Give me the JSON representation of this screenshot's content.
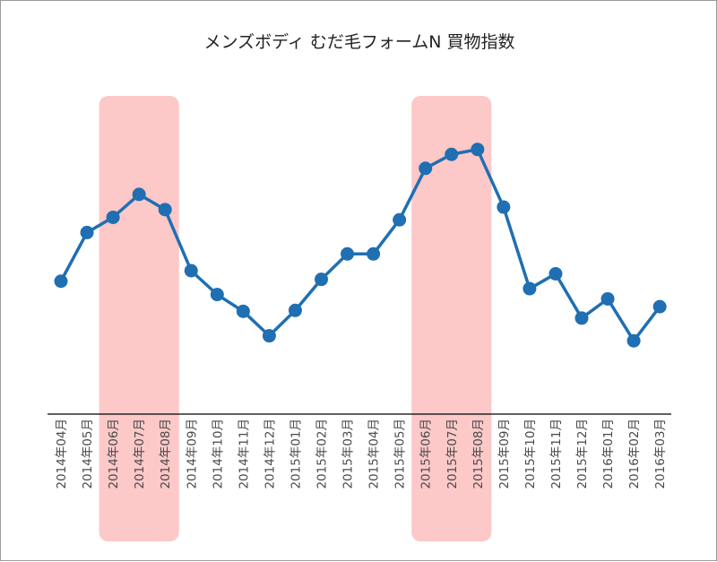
{
  "chart_data": {
    "type": "line",
    "title": "メンズボディ むだ毛フォームN 買物指数",
    "xlabel": "",
    "ylabel": "",
    "ylim": [
      0,
      100
    ],
    "y_axis_visible": false,
    "grid": false,
    "legend": "none",
    "categories": [
      "2014年04月",
      "2014年05月",
      "2014年06月",
      "2014年07月",
      "2014年08月",
      "2014年09月",
      "2014年10月",
      "2014年11月",
      "2014年12月",
      "2015年01月",
      "2015年02月",
      "2015年03月",
      "2015年04月",
      "2015年05月",
      "2015年06月",
      "2015年07月",
      "2015年08月",
      "2015年09月",
      "2015年10月",
      "2015年11月",
      "2015年12月",
      "2016年01月",
      "2016年02月",
      "2016年03月"
    ],
    "series": [
      {
        "values": [
          41.4,
          57.1,
          62.0,
          69.4,
          64.5,
          44.8,
          37.1,
          31.7,
          23.8,
          32.0,
          42.0,
          50.2,
          50.2,
          61.2,
          77.8,
          82.3,
          83.9,
          65.3,
          39.0,
          43.8,
          29.5,
          35.7,
          22.2,
          33.2
        ]
      }
    ],
    "highlight_ranges": [
      {
        "from": "2014年06月",
        "to": "2014年08月"
      },
      {
        "from": "2015年06月",
        "to": "2015年08月"
      }
    ],
    "colors": {
      "line": "#1f6fb2",
      "marker": "#1f6fb2",
      "highlight": "#fcc8c8",
      "axis": "#000000",
      "text": "#4a4a4a"
    }
  }
}
